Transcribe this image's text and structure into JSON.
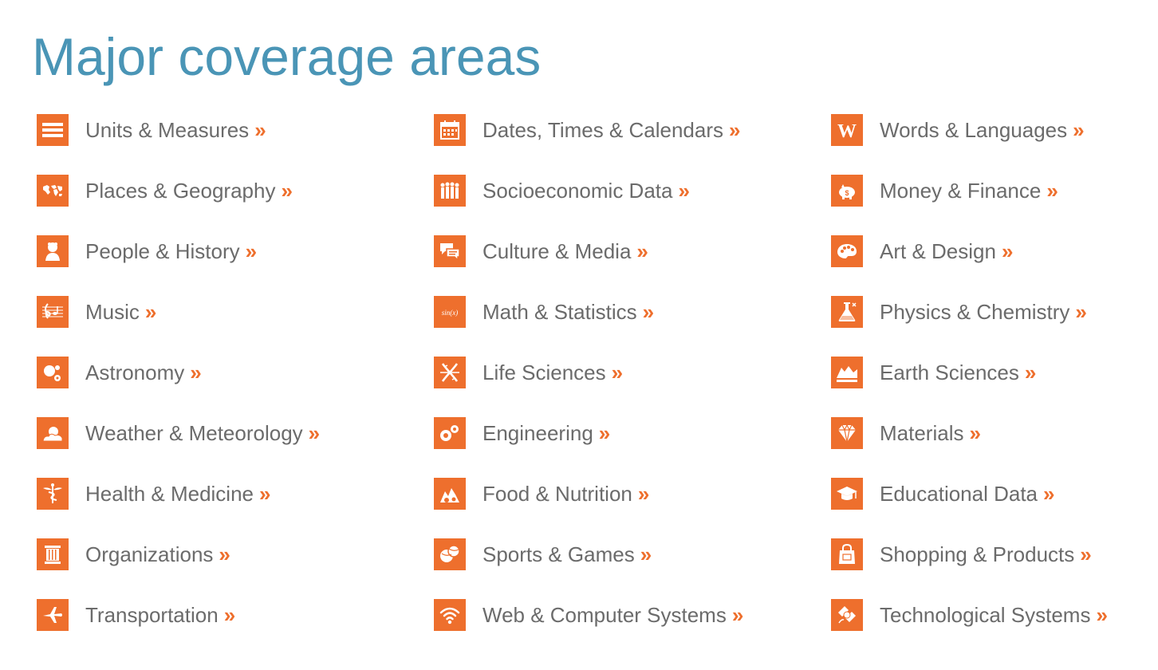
{
  "title": "Major coverage areas",
  "accent_color": "#ee6f2d",
  "title_color": "#4a95b6",
  "text_color": "#6b6b6b",
  "arrow": "»",
  "columns": [
    {
      "items": [
        {
          "label": "Units & Measures",
          "icon": "ruler-icon"
        },
        {
          "label": "Places & Geography",
          "icon": "world-map-icon"
        },
        {
          "label": "People & History",
          "icon": "bust-portrait-icon"
        },
        {
          "label": "Music",
          "icon": "music-notes-icon"
        },
        {
          "label": "Astronomy",
          "icon": "planets-icon"
        },
        {
          "label": "Weather & Meteorology",
          "icon": "sun-cloud-icon"
        },
        {
          "label": "Health & Medicine",
          "icon": "caduceus-icon"
        },
        {
          "label": "Organizations",
          "icon": "column-pillar-icon"
        },
        {
          "label": "Transportation",
          "icon": "airplane-icon"
        }
      ]
    },
    {
      "items": [
        {
          "label": "Dates, Times & Calendars",
          "icon": "calendar-icon"
        },
        {
          "label": "Socioeconomic Data",
          "icon": "people-group-icon"
        },
        {
          "label": "Culture & Media",
          "icon": "speech-bubbles-icon"
        },
        {
          "label": "Math & Statistics",
          "icon": "sin-x-icon",
          "icon_text": "sin(x)"
        },
        {
          "label": "Life Sciences",
          "icon": "dna-helix-icon"
        },
        {
          "label": "Engineering",
          "icon": "gears-icon"
        },
        {
          "label": "Food & Nutrition",
          "icon": "food-icon"
        },
        {
          "label": "Sports & Games",
          "icon": "sports-balls-icon"
        },
        {
          "label": "Web & Computer Systems",
          "icon": "wifi-icon"
        }
      ]
    },
    {
      "items": [
        {
          "label": "Words & Languages",
          "icon": "letter-w-icon",
          "icon_text": "W"
        },
        {
          "label": "Money & Finance",
          "icon": "piggy-bank-icon"
        },
        {
          "label": "Art & Design",
          "icon": "palette-icon"
        },
        {
          "label": "Physics & Chemistry",
          "icon": "flask-icon"
        },
        {
          "label": "Earth Sciences",
          "icon": "mountains-icon"
        },
        {
          "label": "Materials",
          "icon": "diamond-icon"
        },
        {
          "label": "Educational Data",
          "icon": "graduation-cap-icon"
        },
        {
          "label": "Shopping & Products",
          "icon": "shopping-bag-icon"
        },
        {
          "label": "Technological Systems",
          "icon": "satellite-icon"
        }
      ]
    }
  ]
}
